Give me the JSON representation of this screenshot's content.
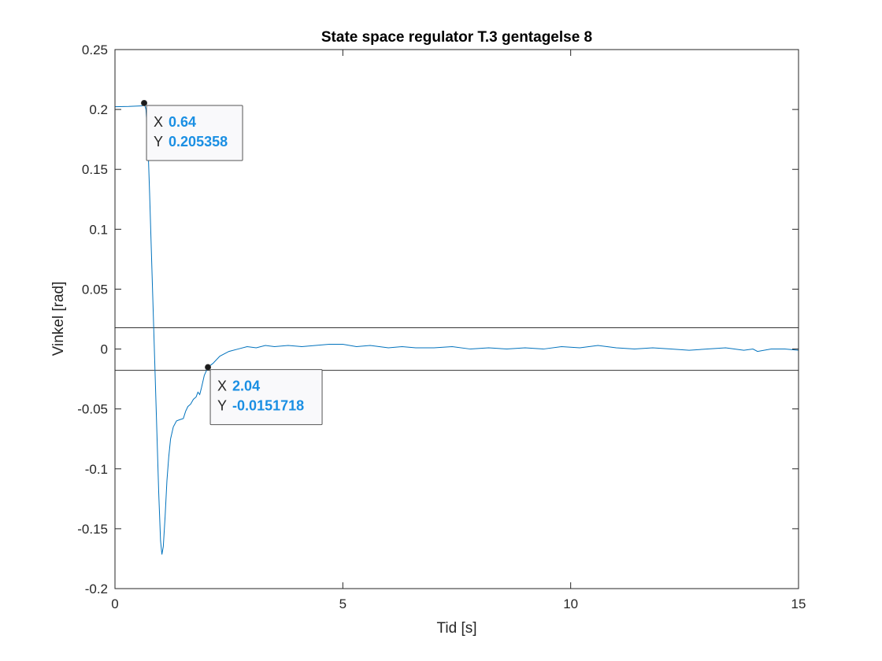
{
  "chart_data": {
    "type": "line",
    "title": "State space regulator T.3 gentagelse 8",
    "xlabel": "Tid [s]",
    "ylabel": "Vinkel [rad]",
    "xlim": [
      0,
      15
    ],
    "ylim": [
      -0.2,
      0.25
    ],
    "x_ticks": [
      "0",
      "5",
      "10",
      "15"
    ],
    "y_ticks": [
      "-0.2",
      "-0.15",
      "-0.1",
      "-0.05",
      "0",
      "0.05",
      "0.1",
      "0.15",
      "0.2",
      "0.25"
    ],
    "grid": false,
    "colors": {
      "line": "#0072BD",
      "tip_value": "#1a8fe3",
      "threshold": "#333333"
    },
    "thresholds": [
      0.0178,
      -0.0178
    ],
    "series": [
      {
        "points": [
          [
            0,
            0.2023
          ],
          [
            0.3,
            0.2025
          ],
          [
            0.6,
            0.203
          ],
          [
            0.64,
            0.2054
          ],
          [
            0.68,
            0.2
          ],
          [
            0.72,
            0.175
          ],
          [
            0.76,
            0.13
          ],
          [
            0.8,
            0.08
          ],
          [
            0.84,
            0.03
          ],
          [
            0.88,
            -0.02
          ],
          [
            0.92,
            -0.07
          ],
          [
            0.96,
            -0.12
          ],
          [
            1.0,
            -0.16
          ],
          [
            1.03,
            -0.1715
          ],
          [
            1.06,
            -0.165
          ],
          [
            1.1,
            -0.14
          ],
          [
            1.14,
            -0.11
          ],
          [
            1.18,
            -0.09
          ],
          [
            1.22,
            -0.075
          ],
          [
            1.28,
            -0.065
          ],
          [
            1.35,
            -0.06
          ],
          [
            1.42,
            -0.059
          ],
          [
            1.5,
            -0.058
          ],
          [
            1.55,
            -0.052
          ],
          [
            1.6,
            -0.048
          ],
          [
            1.66,
            -0.046
          ],
          [
            1.72,
            -0.042
          ],
          [
            1.78,
            -0.04
          ],
          [
            1.82,
            -0.036
          ],
          [
            1.86,
            -0.038
          ],
          [
            1.9,
            -0.032
          ],
          [
            1.96,
            -0.022
          ],
          [
            2.04,
            -0.0152
          ],
          [
            2.15,
            -0.012
          ],
          [
            2.3,
            -0.006
          ],
          [
            2.5,
            -0.002
          ],
          [
            2.7,
            0.0
          ],
          [
            2.9,
            0.002
          ],
          [
            3.1,
            0.001
          ],
          [
            3.3,
            0.003
          ],
          [
            3.5,
            0.002
          ],
          [
            3.8,
            0.003
          ],
          [
            4.1,
            0.002
          ],
          [
            4.4,
            0.003
          ],
          [
            4.7,
            0.004
          ],
          [
            5.0,
            0.004
          ],
          [
            5.3,
            0.002
          ],
          [
            5.6,
            0.003
          ],
          [
            6.0,
            0.001
          ],
          [
            6.3,
            0.002
          ],
          [
            6.6,
            0.001
          ],
          [
            7.0,
            0.001
          ],
          [
            7.4,
            0.002
          ],
          [
            7.8,
            0.0
          ],
          [
            8.2,
            0.001
          ],
          [
            8.6,
            0.0
          ],
          [
            9.0,
            0.001
          ],
          [
            9.4,
            0.0
          ],
          [
            9.8,
            0.002
          ],
          [
            10.2,
            0.001
          ],
          [
            10.6,
            0.003
          ],
          [
            11.0,
            0.001
          ],
          [
            11.4,
            0.0
          ],
          [
            11.8,
            0.001
          ],
          [
            12.2,
            0.0
          ],
          [
            12.6,
            -0.001
          ],
          [
            13.0,
            0.0
          ],
          [
            13.4,
            0.001
          ],
          [
            13.8,
            -0.001
          ],
          [
            14.0,
            0.0
          ],
          [
            14.1,
            -0.002
          ],
          [
            14.4,
            0.0
          ],
          [
            14.7,
            0.0
          ],
          [
            15.0,
            -0.001
          ]
        ]
      }
    ],
    "datatips": [
      {
        "x_label": "X",
        "x_value": "0.64",
        "y_label": "Y",
        "y_value": "0.205358",
        "x": 0.64,
        "y": 0.205358
      },
      {
        "x_label": "X",
        "x_value": "2.04",
        "y_label": "Y",
        "y_value": "-0.0151718",
        "x": 2.04,
        "y": -0.0151718
      }
    ]
  }
}
